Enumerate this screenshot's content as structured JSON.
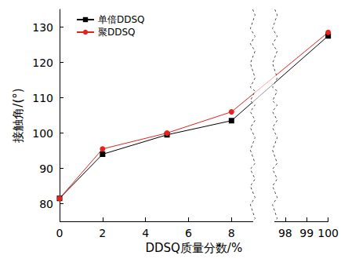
{
  "chart_data": {
    "type": "line",
    "x_label": "DDSQ质量分数/%",
    "y_label": "接触角/(°)",
    "x": [
      0,
      2,
      5,
      8,
      100
    ],
    "series": [
      {
        "name": "单倍DDSQ",
        "color": "#000000",
        "marker": "square",
        "values": [
          81.5,
          94,
          99.5,
          103.5,
          127.5
        ]
      },
      {
        "name": "聚DDSQ",
        "color": "#e8211c",
        "marker": "circle",
        "values": [
          81.5,
          95.5,
          100,
          106,
          128.5
        ]
      }
    ],
    "xlim": [
      0,
      100
    ],
    "xticks": [
      0,
      2,
      4,
      6,
      8,
      98,
      99,
      100
    ],
    "x_break": [
      9,
      97.5
    ],
    "ylim": [
      75,
      135
    ],
    "yticks": [
      80,
      90,
      100,
      110,
      120,
      130
    ],
    "grid": false,
    "legend": "upper left"
  }
}
